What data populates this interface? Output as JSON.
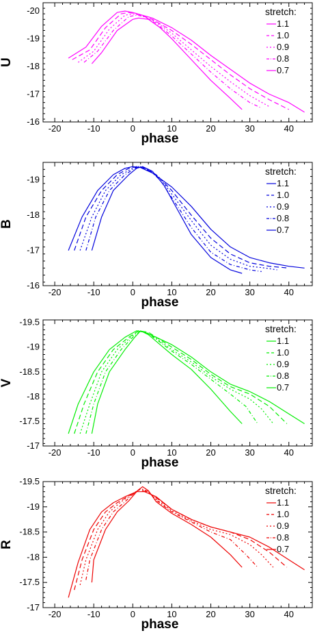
{
  "chart_data": [
    {
      "type": "line",
      "xlabel": "phase",
      "ylabel": "U",
      "xlim": [
        -23,
        46
      ],
      "ylim": [
        -16,
        -20.3
      ],
      "xticks": [
        "-20",
        "-10",
        "0",
        "10",
        "20",
        "30",
        "40"
      ],
      "yticks": [
        "-20",
        "-19",
        "-18",
        "-17",
        "-16"
      ],
      "color": "#ff00ff",
      "legend_title": "stretch:",
      "series": [
        {
          "name": "1.1",
          "x": [
            -16.5,
            -12,
            -8,
            -4,
            -2,
            0,
            5,
            10,
            15,
            20,
            25,
            30,
            35,
            40,
            44
          ],
          "y": [
            -18.3,
            -18.7,
            -19.45,
            -19.95,
            -20.0,
            -19.95,
            -19.75,
            -19.4,
            -18.95,
            -18.4,
            -17.9,
            -17.4,
            -17.0,
            -16.7,
            -16.35
          ]
        },
        {
          "name": "1.0",
          "x": [
            -15.5,
            -11,
            -7,
            -3,
            -1,
            1,
            5,
            10,
            15,
            20,
            25,
            30,
            35,
            40
          ],
          "y": [
            -18.25,
            -18.6,
            -19.4,
            -19.9,
            -19.95,
            -19.9,
            -19.7,
            -19.3,
            -18.8,
            -18.25,
            -17.7,
            -17.2,
            -16.8,
            -16.45
          ]
        },
        {
          "name": "0.9",
          "x": [
            -14,
            -10,
            -6,
            -2,
            0,
            2,
            6,
            10,
            15,
            20,
            25,
            30,
            35
          ],
          "y": [
            -18.15,
            -18.55,
            -19.35,
            -19.85,
            -19.9,
            -19.85,
            -19.6,
            -19.2,
            -18.6,
            -18.0,
            -17.45,
            -16.95,
            -16.55
          ]
        },
        {
          "name": "0.8",
          "x": [
            -12.5,
            -9,
            -5,
            -1,
            1,
            3,
            6,
            10,
            15,
            20,
            25,
            30,
            33
          ],
          "y": [
            -18.15,
            -18.55,
            -19.3,
            -19.8,
            -19.85,
            -19.8,
            -19.55,
            -19.1,
            -18.45,
            -17.8,
            -17.2,
            -16.7,
            -16.5
          ]
        },
        {
          "name": "0.7",
          "x": [
            -10.5,
            -8,
            -4,
            0,
            1.5,
            4,
            7,
            10,
            15,
            20,
            25,
            28
          ],
          "y": [
            -18.1,
            -18.5,
            -19.3,
            -19.7,
            -19.75,
            -19.7,
            -19.4,
            -19.0,
            -18.25,
            -17.5,
            -16.85,
            -16.45
          ]
        }
      ]
    },
    {
      "type": "line",
      "xlabel": "phase",
      "ylabel": "B",
      "xlim": [
        -23,
        46
      ],
      "ylim": [
        -16,
        -19.5
      ],
      "xticks": [
        "-20",
        "-10",
        "0",
        "10",
        "20",
        "30",
        "40"
      ],
      "yticks": [
        "-19",
        "-18",
        "-17",
        "-16"
      ],
      "color": "#0000dd",
      "legend_title": "stretch:",
      "series": [
        {
          "name": "1.1",
          "x": [
            -16.5,
            -13,
            -9,
            -5,
            -2,
            0,
            2,
            5,
            10,
            15,
            20,
            25,
            30,
            35,
            40,
            44
          ],
          "y": [
            -17.0,
            -17.95,
            -18.7,
            -19.15,
            -19.33,
            -19.38,
            -19.35,
            -19.2,
            -18.8,
            -18.25,
            -17.6,
            -17.1,
            -16.8,
            -16.65,
            -16.55,
            -16.5
          ]
        },
        {
          "name": "1.0",
          "x": [
            -15,
            -12,
            -8,
            -4,
            -1,
            1,
            3,
            6,
            10,
            15,
            20,
            25,
            30,
            35,
            40
          ],
          "y": [
            -17.0,
            -17.95,
            -18.7,
            -19.15,
            -19.33,
            -19.38,
            -19.33,
            -19.15,
            -18.7,
            -18.0,
            -17.35,
            -16.9,
            -16.65,
            -16.55,
            -16.5
          ]
        },
        {
          "name": "0.9",
          "x": [
            -13.5,
            -10.5,
            -7,
            -3,
            0,
            1.5,
            4,
            7,
            10,
            15,
            20,
            25,
            30,
            34,
            37
          ],
          "y": [
            -17.0,
            -17.95,
            -18.7,
            -19.15,
            -19.33,
            -19.38,
            -19.3,
            -19.05,
            -18.6,
            -17.85,
            -17.15,
            -16.75,
            -16.55,
            -16.5,
            -16.45
          ]
        },
        {
          "name": "0.8",
          "x": [
            -12,
            -9.5,
            -6,
            -2,
            0.5,
            2,
            4,
            7,
            10,
            15,
            20,
            25,
            30,
            33
          ],
          "y": [
            -17.0,
            -17.95,
            -18.7,
            -19.15,
            -19.33,
            -19.38,
            -19.3,
            -19.0,
            -18.5,
            -17.65,
            -16.95,
            -16.6,
            -16.45,
            -16.4
          ]
        },
        {
          "name": "0.7",
          "x": [
            -10.5,
            -8,
            -5,
            -1,
            1,
            2.5,
            5,
            8,
            10,
            15,
            20,
            25,
            28
          ],
          "y": [
            -17.0,
            -17.95,
            -18.7,
            -19.15,
            -19.33,
            -19.38,
            -19.25,
            -18.85,
            -18.45,
            -17.45,
            -16.8,
            -16.45,
            -16.35
          ]
        }
      ]
    },
    {
      "type": "line",
      "xlabel": "phase",
      "ylabel": "V",
      "xlim": [
        -23,
        46
      ],
      "ylim": [
        -17,
        -19.55
      ],
      "xticks": [
        "-20",
        "-10",
        "0",
        "10",
        "20",
        "30",
        "40"
      ],
      "yticks": [
        "-19.5",
        "-19",
        "-18.5",
        "-18",
        "-17.5",
        "-17"
      ],
      "color": "#00ee00",
      "legend_title": "stretch:",
      "series": [
        {
          "name": "1.1",
          "x": [
            -16.5,
            -14,
            -10,
            -6,
            -2,
            1,
            3,
            6,
            10,
            15,
            20,
            25,
            30,
            35,
            40,
            44
          ],
          "y": [
            -17.25,
            -17.85,
            -18.5,
            -18.95,
            -19.2,
            -19.33,
            -19.3,
            -19.2,
            -19.05,
            -18.8,
            -18.5,
            -18.25,
            -18.1,
            -17.9,
            -17.65,
            -17.45
          ]
        },
        {
          "name": "1.0",
          "x": [
            -15,
            -12.5,
            -9,
            -5,
            -1,
            1.5,
            4,
            7,
            10,
            15,
            20,
            25,
            30,
            35,
            39.5
          ],
          "y": [
            -17.25,
            -17.85,
            -18.5,
            -18.95,
            -19.2,
            -19.33,
            -19.3,
            -19.15,
            -19.0,
            -18.75,
            -18.45,
            -18.2,
            -18.05,
            -17.8,
            -17.45
          ]
        },
        {
          "name": "0.9",
          "x": [
            -13.5,
            -11,
            -8,
            -4,
            -0.5,
            1.5,
            4,
            7,
            10,
            15,
            20,
            25,
            30,
            33,
            36
          ],
          "y": [
            -17.25,
            -17.85,
            -18.5,
            -18.95,
            -19.2,
            -19.33,
            -19.28,
            -19.12,
            -18.95,
            -18.7,
            -18.4,
            -18.15,
            -17.95,
            -17.75,
            -17.45
          ]
        },
        {
          "name": "0.8",
          "x": [
            -12,
            -10,
            -7,
            -3,
            0,
            2,
            4,
            7,
            10,
            15,
            20,
            25,
            29,
            32
          ],
          "y": [
            -17.25,
            -17.85,
            -18.5,
            -18.95,
            -19.2,
            -19.33,
            -19.27,
            -19.1,
            -18.92,
            -18.65,
            -18.35,
            -18.05,
            -17.8,
            -17.45
          ]
        },
        {
          "name": "0.7",
          "x": [
            -10.5,
            -9,
            -6,
            -2,
            0.5,
            2,
            4,
            7,
            10,
            15,
            20,
            25,
            28
          ],
          "y": [
            -17.25,
            -17.85,
            -18.5,
            -18.95,
            -19.2,
            -19.33,
            -19.25,
            -19.05,
            -18.85,
            -18.55,
            -18.15,
            -17.7,
            -17.45
          ]
        }
      ]
    },
    {
      "type": "line",
      "xlabel": "phase",
      "ylabel": "R",
      "xlim": [
        -23,
        46
      ],
      "ylim": [
        -17,
        -19.5
      ],
      "xticks": [
        "-20",
        "-10",
        "0",
        "10",
        "20",
        "30",
        "40"
      ],
      "yticks": [
        "-19.5",
        "-19",
        "-18.5",
        "-18",
        "-17.5",
        "-17"
      ],
      "color": "#ee0000",
      "legend_title": "stretch:",
      "series": [
        {
          "name": "1.1",
          "x": [
            -16.5,
            -14,
            -11,
            -8,
            -5,
            -2,
            1,
            3,
            6,
            10,
            15,
            20,
            25,
            30,
            35,
            40,
            44
          ],
          "y": [
            -17.2,
            -17.9,
            -18.55,
            -18.9,
            -19.08,
            -19.2,
            -19.3,
            -19.3,
            -19.2,
            -18.95,
            -18.75,
            -18.6,
            -18.5,
            -18.4,
            -18.2,
            -17.95,
            -17.75
          ]
        },
        {
          "name": "1.0",
          "x": [
            -15,
            -13,
            -10,
            -7,
            -4,
            -1,
            1.5,
            3.5,
            6,
            10,
            15,
            20,
            25,
            30,
            35,
            39.5
          ],
          "y": [
            -17.35,
            -17.95,
            -18.55,
            -18.9,
            -19.08,
            -19.22,
            -19.33,
            -19.3,
            -19.18,
            -18.95,
            -18.75,
            -18.6,
            -18.5,
            -18.35,
            -18.1,
            -17.8
          ]
        },
        {
          "name": "0.9",
          "x": [
            -13.5,
            -12,
            -9,
            -6,
            -3,
            0,
            2,
            4,
            6,
            10,
            15,
            20,
            25,
            30,
            33,
            36
          ],
          "y": [
            -17.45,
            -17.95,
            -18.55,
            -18.9,
            -19.1,
            -19.25,
            -19.35,
            -19.3,
            -19.15,
            -18.92,
            -18.72,
            -18.55,
            -18.45,
            -18.25,
            -18.05,
            -17.8
          ]
        },
        {
          "name": "0.8",
          "x": [
            -12,
            -11,
            -8,
            -5,
            -2,
            0.5,
            2,
            4,
            6,
            10,
            15,
            20,
            25,
            29,
            32
          ],
          "y": [
            -17.55,
            -17.95,
            -18.55,
            -18.9,
            -19.1,
            -19.28,
            -19.37,
            -19.3,
            -19.13,
            -18.9,
            -18.7,
            -18.5,
            -18.35,
            -18.05,
            -17.8
          ]
        },
        {
          "name": "0.7",
          "x": [
            -10.5,
            -10,
            -7,
            -4,
            -1,
            1,
            2.5,
            4,
            6,
            10,
            15,
            20,
            25,
            28
          ],
          "y": [
            -17.5,
            -17.95,
            -18.55,
            -18.9,
            -19.12,
            -19.3,
            -19.4,
            -19.32,
            -19.1,
            -18.87,
            -18.65,
            -18.4,
            -18.05,
            -17.8
          ]
        }
      ]
    }
  ]
}
